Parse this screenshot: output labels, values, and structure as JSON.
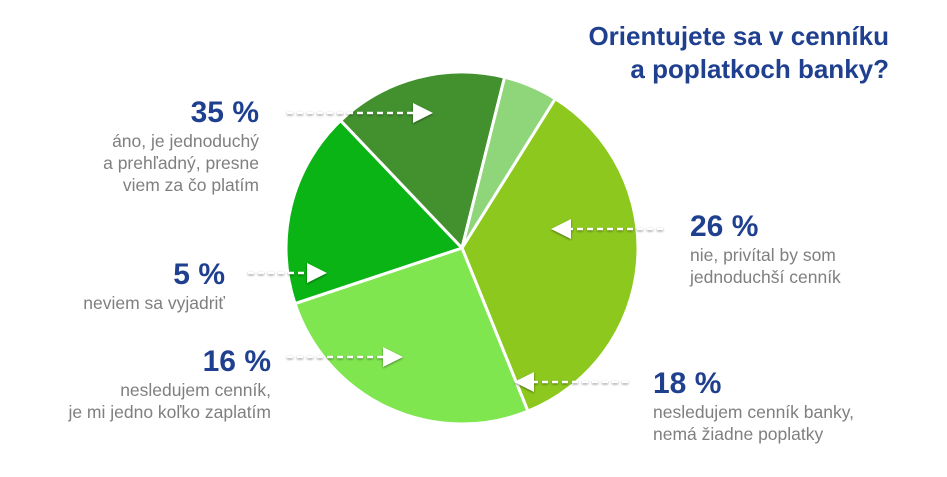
{
  "chart_data": {
    "type": "pie",
    "title_lines": [
      "Orientujete sa v cenníku",
      "a poplatkoch banky?"
    ],
    "slices": [
      {
        "value": 35,
        "pct_label": "35 %",
        "desc": "áno, je jednoduchý\na prehľadný, presne\nviem za čo platím",
        "color": "#8cc81e"
      },
      {
        "value": 26,
        "pct_label": "26 %",
        "desc": "nie, privítal by som\njednoduchší cenník",
        "color": "#80e650"
      },
      {
        "value": 18,
        "pct_label": "18 %",
        "desc": "nesledujem cenník banky,\nnemá žiadne poplatky",
        "color": "#0ab414"
      },
      {
        "value": 16,
        "pct_label": "16 %",
        "desc": "nesledujem cenník,\nje mi jedno koľko zaplatím",
        "color": "#42912e"
      },
      {
        "value": 5,
        "pct_label": "5 %",
        "desc": "neviem sa vyjadriť",
        "color": "#8fd67a"
      }
    ]
  }
}
